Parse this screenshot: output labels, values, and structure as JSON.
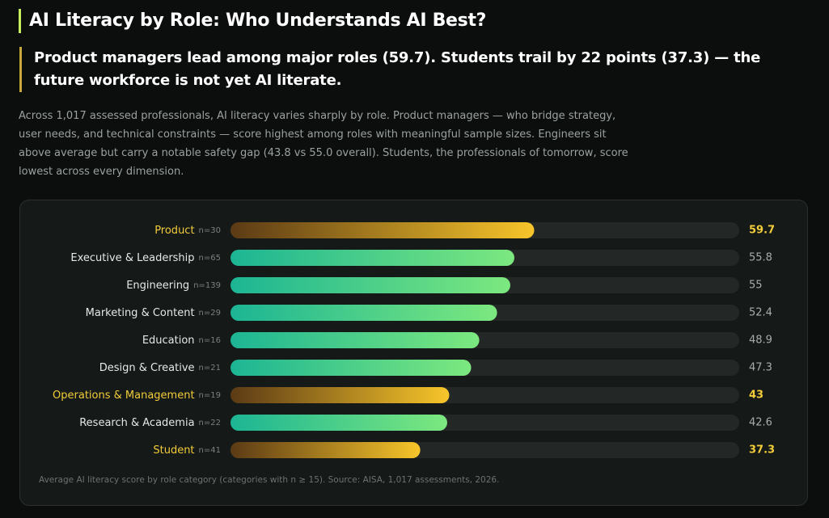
{
  "chart_data": {
    "type": "bar",
    "orientation": "horizontal",
    "title": "AI Literacy by Role: Who Understands AI Best?",
    "subtitle": "Product managers lead among major roles (59.7). Students trail by 22 points (37.3) — the future workforce is not yet AI literate.",
    "description": "Across 1,017 assessed professionals, AI literacy varies sharply by role. Product managers — who bridge strategy, user needs, and technical constraints — score highest among roles with meaningful sample sizes. Engineers sit above average but carry a notable safety gap (43.8 vs 55.0 overall). Students, the professionals of tomorrow, score lowest across every dimension.",
    "footnote": "Average AI literacy score by role category (categories with n ≥ 15). Source: AISA, 1,017 assessments, 2026.",
    "categories": [
      "Product",
      "Executive & Leadership",
      "Engineering",
      "Marketing & Content",
      "Education",
      "Design & Creative",
      "Operations & Management",
      "Research & Academia",
      "Student"
    ],
    "sample_labels": [
      "n=30",
      "n=65",
      "n=139",
      "n=29",
      "n=16",
      "n=21",
      "n=19",
      "n=22",
      "n=41"
    ],
    "values": [
      59.7,
      55.8,
      55,
      52.4,
      48.9,
      47.3,
      43,
      42.6,
      37.3
    ],
    "highlight": [
      true,
      false,
      false,
      false,
      false,
      false,
      true,
      false,
      true
    ],
    "xlim": [
      0,
      100
    ]
  }
}
